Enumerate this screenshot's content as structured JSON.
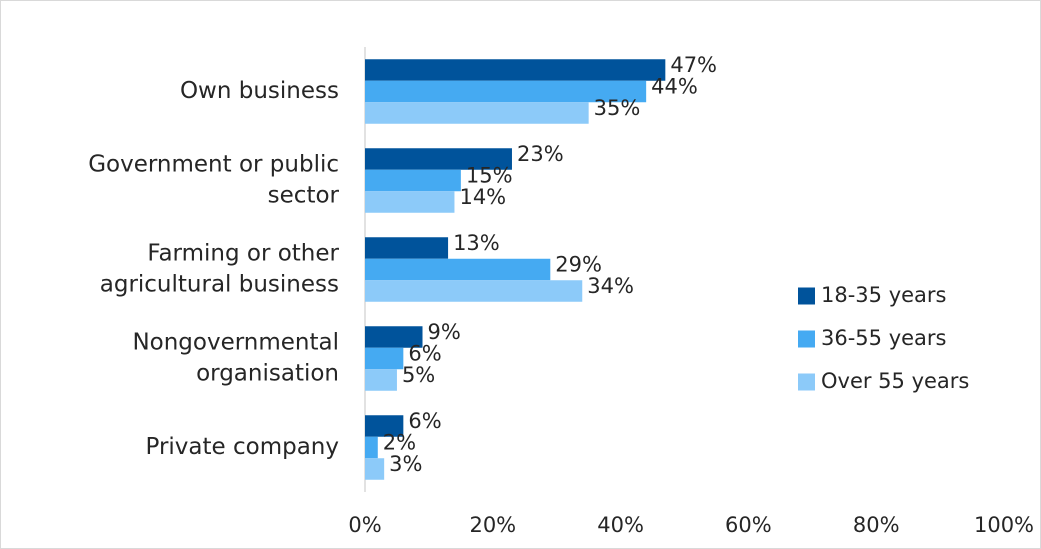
{
  "chart_data": {
    "type": "bar",
    "orientation": "horizontal",
    "categories": [
      [
        "Own business"
      ],
      [
        "Government or public",
        "sector"
      ],
      [
        "Farming or other",
        "agricultural business"
      ],
      [
        "Nongovernmental",
        "organisation"
      ],
      [
        "Private company"
      ]
    ],
    "series": [
      {
        "name": "18-35 years",
        "color": "#00539b",
        "values": [
          47,
          23,
          13,
          9,
          6
        ],
        "labels": [
          "47%",
          "23%",
          "13%",
          "9%",
          "6%"
        ]
      },
      {
        "name": "36-55 years",
        "color": "#45aaf2",
        "values": [
          44,
          15,
          29,
          6,
          2
        ],
        "labels": [
          "44%",
          "15%",
          "29%",
          "6%",
          "2%"
        ]
      },
      {
        "name": "Over 55 years",
        "color": "#8ccaf9",
        "values": [
          35,
          14,
          34,
          5,
          3
        ],
        "labels": [
          "35%",
          "14%",
          "34%",
          "5%",
          "3%"
        ]
      }
    ],
    "xlim": [
      0,
      100
    ],
    "xticks": [
      0,
      20,
      40,
      60,
      80,
      100
    ],
    "xtick_labels": [
      "0%",
      "20%",
      "40%",
      "60%",
      "80%",
      "100%"
    ],
    "grid": false,
    "legend_position": "right"
  }
}
